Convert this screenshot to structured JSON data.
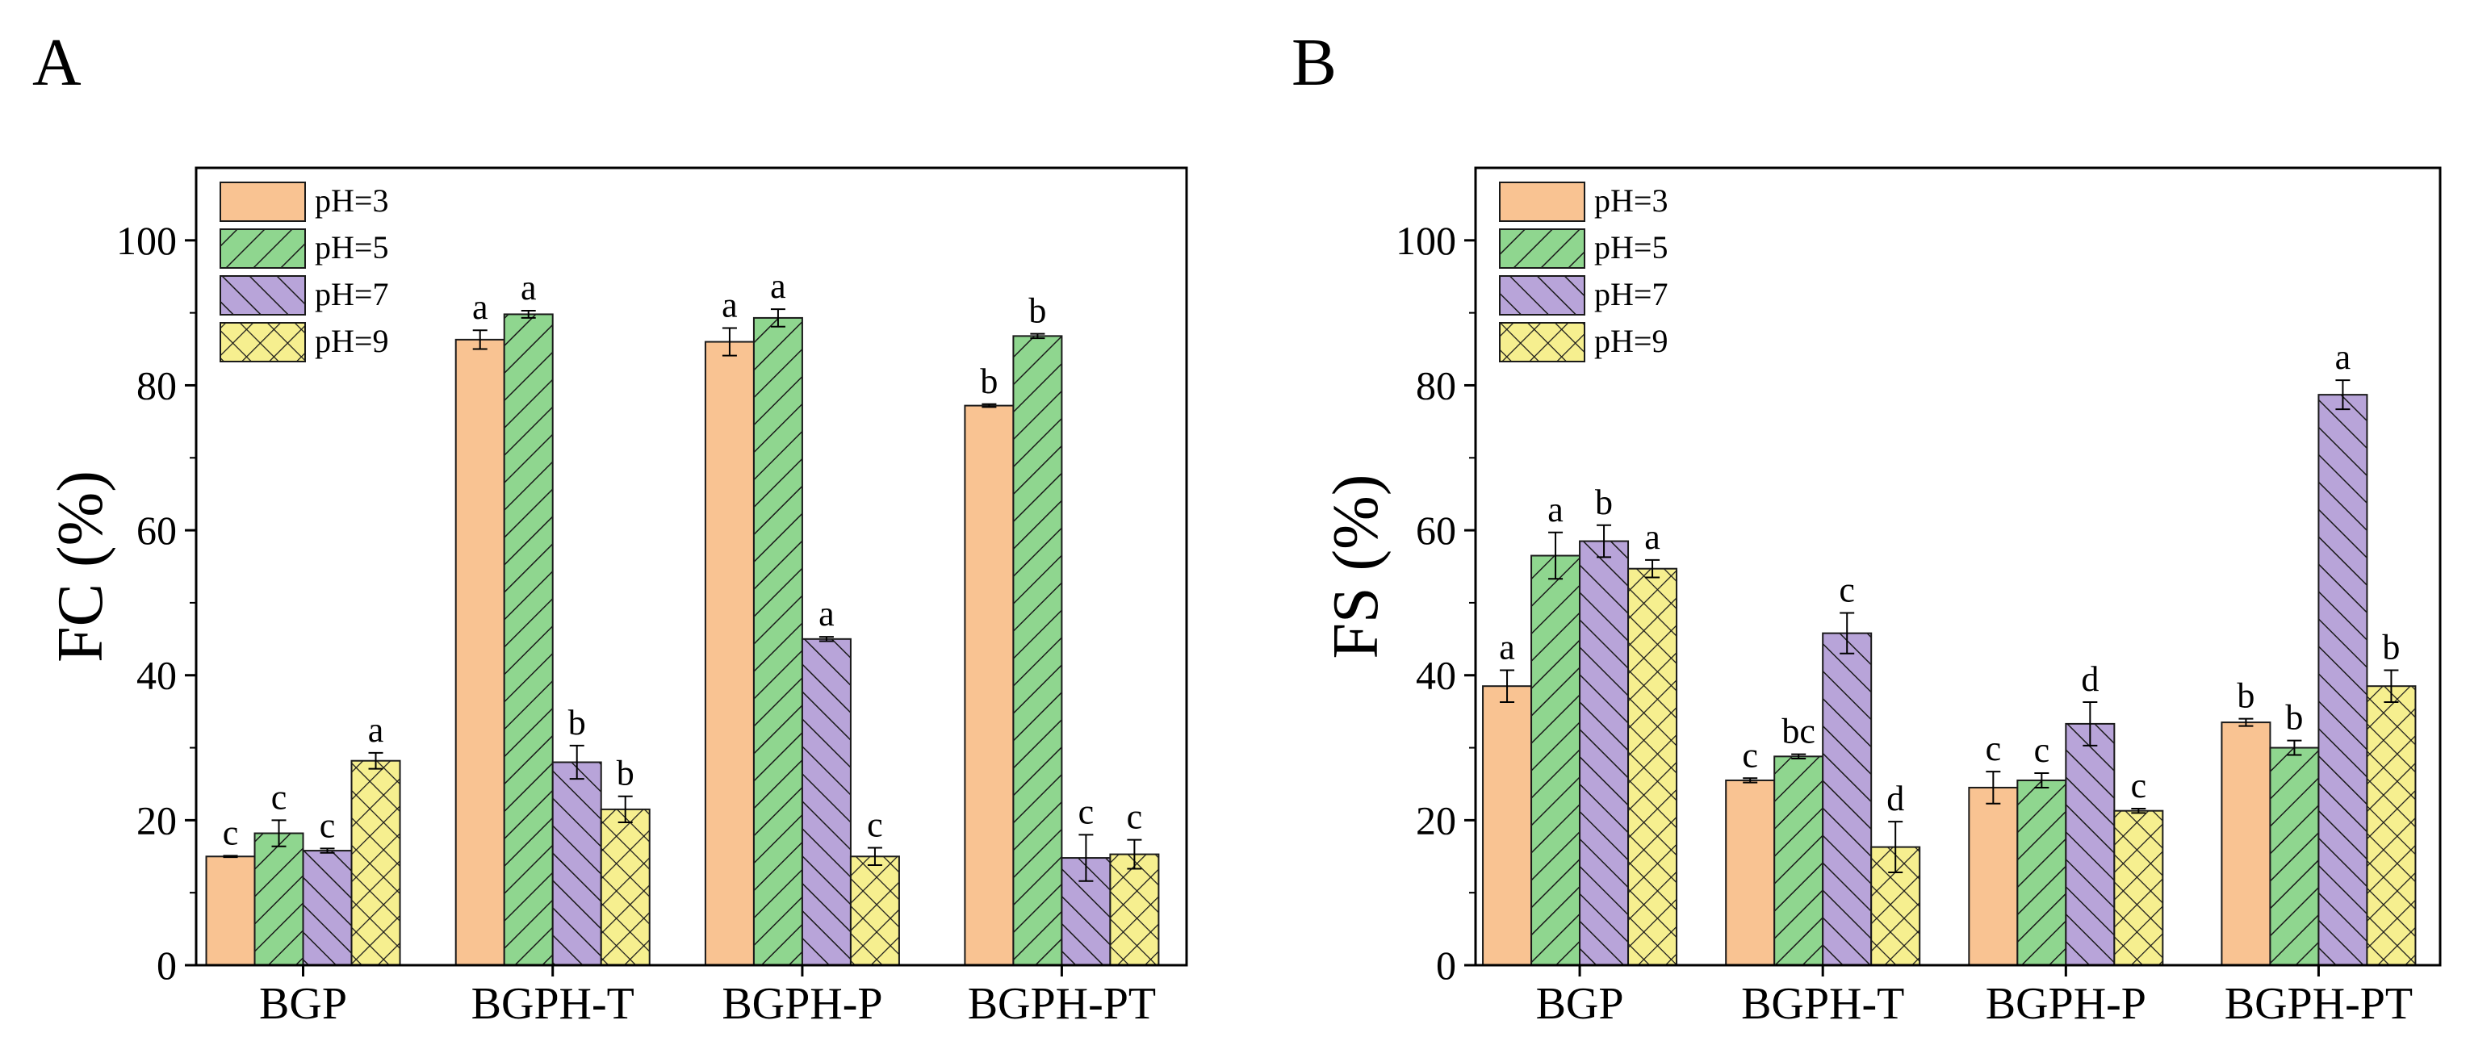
{
  "colors": {
    "pH=3": "#f9c392",
    "pH=5": "#8fd68f",
    "pH=7": "#b8a4d9",
    "pH=9": "#f6ef8f",
    "axis": "#000000"
  },
  "chart_data": [
    {
      "type": "bar",
      "panel_label": "A",
      "ylabel": "FC (%)",
      "xlabel": "",
      "ylim": [
        0,
        110
      ],
      "yticks": [
        "0",
        "20",
        "40",
        "60",
        "80",
        "100"
      ],
      "legend_placement": "top-left",
      "categories": [
        "BGP",
        "BGPH-T",
        "BGPH-P",
        "BGPH-PT"
      ],
      "series": [
        {
          "name": "pH=3",
          "pattern": "solid",
          "values": [
            15.0,
            86.3,
            86.0,
            77.2
          ],
          "errors": [
            0.1,
            1.3,
            1.9,
            0.2
          ],
          "letters": [
            "c",
            "a",
            "a",
            "b"
          ]
        },
        {
          "name": "pH=5",
          "pattern": "diag",
          "values": [
            18.2,
            89.8,
            89.3,
            86.8
          ],
          "errors": [
            1.8,
            0.5,
            1.2,
            0.3
          ],
          "letters": [
            "c",
            "a",
            "a",
            "b"
          ]
        },
        {
          "name": "pH=7",
          "pattern": "back",
          "values": [
            15.8,
            28.0,
            45.0,
            14.8
          ],
          "errors": [
            0.3,
            2.3,
            0.3,
            3.2
          ],
          "letters": [
            "c",
            "b",
            "a",
            "c"
          ]
        },
        {
          "name": "pH=9",
          "pattern": "cross",
          "values": [
            28.2,
            21.5,
            15.0,
            15.3
          ],
          "errors": [
            1.1,
            1.8,
            1.2,
            2.0
          ],
          "letters": [
            "a",
            "b",
            "c",
            "c"
          ]
        }
      ]
    },
    {
      "type": "bar",
      "panel_label": "B",
      "ylabel": "FS (%)",
      "xlabel": "",
      "ylim": [
        0,
        110
      ],
      "yticks": [
        "0",
        "20",
        "40",
        "60",
        "80",
        "100"
      ],
      "legend_placement": "top-left",
      "categories": [
        "BGP",
        "BGPH-T",
        "BGPH-P",
        "BGPH-PT"
      ],
      "series": [
        {
          "name": "pH=3",
          "pattern": "solid",
          "values": [
            38.5,
            25.5,
            24.5,
            33.5
          ],
          "errors": [
            2.2,
            0.3,
            2.2,
            0.5
          ],
          "letters": [
            "a",
            "c",
            "c",
            "b"
          ]
        },
        {
          "name": "pH=5",
          "pattern": "diag",
          "values": [
            56.5,
            28.8,
            25.5,
            30.0
          ],
          "errors": [
            3.2,
            0.3,
            1.0,
            1.0
          ],
          "letters": [
            "a",
            "bc",
            "c",
            "b"
          ]
        },
        {
          "name": "pH=7",
          "pattern": "back",
          "values": [
            58.5,
            45.8,
            33.3,
            78.7
          ],
          "errors": [
            2.2,
            2.8,
            3.0,
            2.0
          ],
          "letters": [
            "b",
            "c",
            "d",
            "a"
          ]
        },
        {
          "name": "pH=9",
          "pattern": "cross",
          "values": [
            54.7,
            16.3,
            21.3,
            38.5
          ],
          "errors": [
            1.2,
            3.5,
            0.3,
            2.2
          ],
          "letters": [
            "a",
            "d",
            "c",
            "b"
          ]
        }
      ]
    }
  ]
}
